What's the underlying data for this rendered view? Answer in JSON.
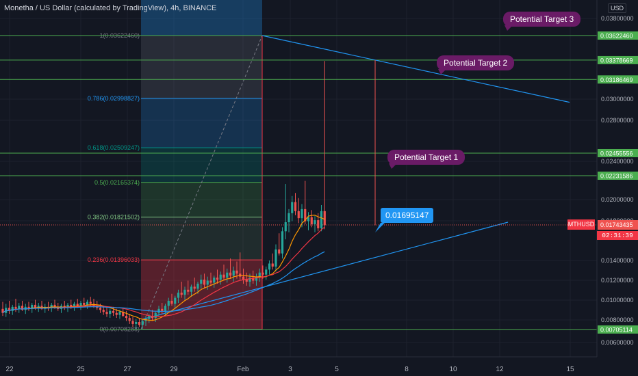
{
  "header": {
    "title": "Monetha / US Dollar (calculated by TradingView), 4h, BINANCE",
    "currency": "USD"
  },
  "annotations": {
    "target1": "Potential Target 1",
    "target2": "Potential Target 2",
    "target3": "Potential Target 3",
    "price_callout": "0.01695147"
  },
  "price_scale": {
    "symbol": "MTHUSD",
    "last_price": "0.01743435",
    "countdown": "02:31:39"
  },
  "colors": {
    "background": "#131722",
    "grid": "#1e222d",
    "up": "#26a69a",
    "down": "#ef5350",
    "horizontal_level": "#4caf50",
    "trendline": "#2196f3",
    "callout": "#6a1b66",
    "fib_1": "#787b86",
    "fib_0786": "#2196f3",
    "fib_0618": "#009688",
    "fib_05": "#4caf50",
    "fib_0382": "#81c784",
    "fib_0236": "#f23645"
  },
  "chart_data": {
    "type": "candlestick",
    "title": "Monetha / US Dollar (calculated by TradingView), 4h, BINANCE",
    "x_tick_labels": [
      "22",
      "25",
      "27",
      "29",
      "Feb",
      "3",
      "5",
      "8",
      "10",
      "12",
      "15"
    ],
    "y_tick_labels": [
      "0.03800000",
      "0.03000000",
      "0.02800000",
      "0.02400000",
      "0.02000000",
      "0.01800000",
      "0.01400000",
      "0.01200000",
      "0.01000000",
      "0.00800000",
      "0.00600000"
    ],
    "ylim": [
      0.0052,
      0.0395
    ],
    "horizontal_levels": [
      0.0362246,
      0.03378669,
      0.03186469,
      0.02455556,
      0.02231586,
      0.00705114
    ],
    "fibonacci": [
      {
        "ratio": "1",
        "price": 0.0362246,
        "label": "1(0.03622460)"
      },
      {
        "ratio": "0.786",
        "price": 0.02998827,
        "label": "0.786(0.02998827)"
      },
      {
        "ratio": "0.618",
        "price": 0.02509247,
        "label": "0.618(0.02509247)"
      },
      {
        "ratio": "0.5",
        "price": 0.02165374,
        "label": "0.5(0.02165374)"
      },
      {
        "ratio": "0.382",
        "price": 0.01821502,
        "label": "0.382(0.01821502)"
      },
      {
        "ratio": "0.236",
        "price": 0.01396033,
        "label": "0.236(0.01396033)"
      },
      {
        "ratio": "0",
        "price": 0.00708288,
        "label": "0(0.00708288)"
      }
    ],
    "candles": [
      {
        "o": 0.0091,
        "h": 0.0098,
        "l": 0.0084,
        "c": 0.0087
      },
      {
        "o": 0.0087,
        "h": 0.0096,
        "l": 0.0083,
        "c": 0.0092
      },
      {
        "o": 0.0092,
        "h": 0.0099,
        "l": 0.0086,
        "c": 0.0089
      },
      {
        "o": 0.0089,
        "h": 0.0095,
        "l": 0.0085,
        "c": 0.0093
      },
      {
        "o": 0.0093,
        "h": 0.0101,
        "l": 0.0088,
        "c": 0.0091
      },
      {
        "o": 0.0091,
        "h": 0.0097,
        "l": 0.0087,
        "c": 0.0094
      },
      {
        "o": 0.0094,
        "h": 0.0099,
        "l": 0.0089,
        "c": 0.009
      },
      {
        "o": 0.009,
        "h": 0.0096,
        "l": 0.0086,
        "c": 0.0093
      },
      {
        "o": 0.0093,
        "h": 0.0098,
        "l": 0.0089,
        "c": 0.0091
      },
      {
        "o": 0.0091,
        "h": 0.0097,
        "l": 0.0087,
        "c": 0.0095
      },
      {
        "o": 0.0095,
        "h": 0.01,
        "l": 0.009,
        "c": 0.0092
      },
      {
        "o": 0.0092,
        "h": 0.0097,
        "l": 0.0088,
        "c": 0.0094
      },
      {
        "o": 0.0094,
        "h": 0.0099,
        "l": 0.009,
        "c": 0.0091
      },
      {
        "o": 0.0091,
        "h": 0.0096,
        "l": 0.0087,
        "c": 0.0093
      },
      {
        "o": 0.0093,
        "h": 0.0098,
        "l": 0.0089,
        "c": 0.0092
      },
      {
        "o": 0.0092,
        "h": 0.0097,
        "l": 0.0088,
        "c": 0.0095
      },
      {
        "o": 0.0095,
        "h": 0.01,
        "l": 0.0091,
        "c": 0.0093
      },
      {
        "o": 0.0093,
        "h": 0.0097,
        "l": 0.0089,
        "c": 0.0091
      },
      {
        "o": 0.0091,
        "h": 0.0096,
        "l": 0.0087,
        "c": 0.0094
      },
      {
        "o": 0.0094,
        "h": 0.0099,
        "l": 0.009,
        "c": 0.0092
      },
      {
        "o": 0.0092,
        "h": 0.0097,
        "l": 0.0088,
        "c": 0.0095
      },
      {
        "o": 0.0095,
        "h": 0.01,
        "l": 0.0091,
        "c": 0.0093
      },
      {
        "o": 0.0093,
        "h": 0.0098,
        "l": 0.0089,
        "c": 0.0096
      },
      {
        "o": 0.0096,
        "h": 0.0101,
        "l": 0.0092,
        "c": 0.0094
      },
      {
        "o": 0.0094,
        "h": 0.0099,
        "l": 0.009,
        "c": 0.0097
      },
      {
        "o": 0.0097,
        "h": 0.0102,
        "l": 0.0093,
        "c": 0.0095
      },
      {
        "o": 0.0095,
        "h": 0.01,
        "l": 0.0091,
        "c": 0.0098
      },
      {
        "o": 0.0098,
        "h": 0.0103,
        "l": 0.0094,
        "c": 0.0096
      },
      {
        "o": 0.0096,
        "h": 0.0101,
        "l": 0.0092,
        "c": 0.0094
      },
      {
        "o": 0.0094,
        "h": 0.0099,
        "l": 0.009,
        "c": 0.0092
      },
      {
        "o": 0.0092,
        "h": 0.0096,
        "l": 0.0087,
        "c": 0.009
      },
      {
        "o": 0.009,
        "h": 0.0094,
        "l": 0.0085,
        "c": 0.0088
      },
      {
        "o": 0.0088,
        "h": 0.0093,
        "l": 0.0083,
        "c": 0.0086
      },
      {
        "o": 0.0086,
        "h": 0.0091,
        "l": 0.0082,
        "c": 0.0089
      },
      {
        "o": 0.0089,
        "h": 0.0093,
        "l": 0.0084,
        "c": 0.0087
      },
      {
        "o": 0.0087,
        "h": 0.0091,
        "l": 0.0082,
        "c": 0.0085
      },
      {
        "o": 0.0085,
        "h": 0.009,
        "l": 0.0081,
        "c": 0.0088
      },
      {
        "o": 0.0088,
        "h": 0.0092,
        "l": 0.0083,
        "c": 0.0084
      },
      {
        "o": 0.0084,
        "h": 0.0089,
        "l": 0.0079,
        "c": 0.0082
      },
      {
        "o": 0.0082,
        "h": 0.0086,
        "l": 0.0076,
        "c": 0.0079
      },
      {
        "o": 0.0079,
        "h": 0.0083,
        "l": 0.0073,
        "c": 0.0076
      },
      {
        "o": 0.0076,
        "h": 0.0081,
        "l": 0.0071,
        "c": 0.0078
      },
      {
        "o": 0.0078,
        "h": 0.0082,
        "l": 0.0073,
        "c": 0.0075
      },
      {
        "o": 0.0075,
        "h": 0.0081,
        "l": 0.0071,
        "c": 0.0079
      },
      {
        "o": 0.0079,
        "h": 0.0084,
        "l": 0.0074,
        "c": 0.0081
      },
      {
        "o": 0.0081,
        "h": 0.0086,
        "l": 0.0077,
        "c": 0.0084
      },
      {
        "o": 0.0084,
        "h": 0.009,
        "l": 0.0079,
        "c": 0.0082
      },
      {
        "o": 0.0082,
        "h": 0.0088,
        "l": 0.0078,
        "c": 0.0087
      },
      {
        "o": 0.0087,
        "h": 0.0094,
        "l": 0.0083,
        "c": 0.0091
      },
      {
        "o": 0.0091,
        "h": 0.0097,
        "l": 0.0086,
        "c": 0.0089
      },
      {
        "o": 0.0089,
        "h": 0.0096,
        "l": 0.0085,
        "c": 0.0094
      },
      {
        "o": 0.0094,
        "h": 0.0102,
        "l": 0.009,
        "c": 0.0099
      },
      {
        "o": 0.0099,
        "h": 0.0106,
        "l": 0.0094,
        "c": 0.0096
      },
      {
        "o": 0.0096,
        "h": 0.0104,
        "l": 0.0092,
        "c": 0.0102
      },
      {
        "o": 0.0102,
        "h": 0.011,
        "l": 0.0097,
        "c": 0.0107
      },
      {
        "o": 0.0107,
        "h": 0.0118,
        "l": 0.0102,
        "c": 0.0105
      },
      {
        "o": 0.0105,
        "h": 0.0113,
        "l": 0.01,
        "c": 0.011
      },
      {
        "o": 0.011,
        "h": 0.0119,
        "l": 0.0105,
        "c": 0.0108
      },
      {
        "o": 0.0108,
        "h": 0.0115,
        "l": 0.0103,
        "c": 0.0113
      },
      {
        "o": 0.0113,
        "h": 0.0122,
        "l": 0.0108,
        "c": 0.0111
      },
      {
        "o": 0.0111,
        "h": 0.0118,
        "l": 0.0106,
        "c": 0.0116
      },
      {
        "o": 0.0116,
        "h": 0.0125,
        "l": 0.0111,
        "c": 0.012
      },
      {
        "o": 0.012,
        "h": 0.0126,
        "l": 0.0112,
        "c": 0.0115
      },
      {
        "o": 0.0115,
        "h": 0.0123,
        "l": 0.011,
        "c": 0.0119
      },
      {
        "o": 0.0119,
        "h": 0.0127,
        "l": 0.0114,
        "c": 0.0117
      },
      {
        "o": 0.0117,
        "h": 0.0124,
        "l": 0.0112,
        "c": 0.0122
      },
      {
        "o": 0.0122,
        "h": 0.013,
        "l": 0.0116,
        "c": 0.012
      },
      {
        "o": 0.012,
        "h": 0.0128,
        "l": 0.0115,
        "c": 0.0125
      },
      {
        "o": 0.0125,
        "h": 0.0135,
        "l": 0.0119,
        "c": 0.0122
      },
      {
        "o": 0.0122,
        "h": 0.0131,
        "l": 0.0117,
        "c": 0.0127
      },
      {
        "o": 0.0127,
        "h": 0.0141,
        "l": 0.0121,
        "c": 0.0124
      },
      {
        "o": 0.0124,
        "h": 0.0133,
        "l": 0.0118,
        "c": 0.0129
      },
      {
        "o": 0.0129,
        "h": 0.0138,
        "l": 0.0121,
        "c": 0.0126
      },
      {
        "o": 0.0126,
        "h": 0.0147,
        "l": 0.012,
        "c": 0.0123
      },
      {
        "o": 0.0123,
        "h": 0.0131,
        "l": 0.0116,
        "c": 0.012
      },
      {
        "o": 0.012,
        "h": 0.0127,
        "l": 0.0114,
        "c": 0.0118
      },
      {
        "o": 0.0118,
        "h": 0.0126,
        "l": 0.0113,
        "c": 0.0122
      },
      {
        "o": 0.0122,
        "h": 0.0129,
        "l": 0.0116,
        "c": 0.0119
      },
      {
        "o": 0.0119,
        "h": 0.0126,
        "l": 0.0114,
        "c": 0.0123
      },
      {
        "o": 0.0123,
        "h": 0.0131,
        "l": 0.0118,
        "c": 0.0127
      },
      {
        "o": 0.0127,
        "h": 0.0134,
        "l": 0.0121,
        "c": 0.0125
      },
      {
        "o": 0.0125,
        "h": 0.0133,
        "l": 0.012,
        "c": 0.013
      },
      {
        "o": 0.013,
        "h": 0.0139,
        "l": 0.0125,
        "c": 0.0136
      },
      {
        "o": 0.0136,
        "h": 0.0146,
        "l": 0.013,
        "c": 0.0133
      },
      {
        "o": 0.0133,
        "h": 0.0155,
        "l": 0.0128,
        "c": 0.015
      },
      {
        "o": 0.015,
        "h": 0.0166,
        "l": 0.0144,
        "c": 0.0146
      },
      {
        "o": 0.0146,
        "h": 0.0172,
        "l": 0.0141,
        "c": 0.0168
      },
      {
        "o": 0.0168,
        "h": 0.0215,
        "l": 0.016,
        "c": 0.0177
      },
      {
        "o": 0.0177,
        "h": 0.019,
        "l": 0.0167,
        "c": 0.0186
      },
      {
        "o": 0.0186,
        "h": 0.0203,
        "l": 0.0178,
        "c": 0.0197
      },
      {
        "o": 0.0197,
        "h": 0.0206,
        "l": 0.0184,
        "c": 0.0188
      },
      {
        "o": 0.0188,
        "h": 0.0201,
        "l": 0.0176,
        "c": 0.0181
      },
      {
        "o": 0.0181,
        "h": 0.0195,
        "l": 0.0172,
        "c": 0.019
      },
      {
        "o": 0.019,
        "h": 0.0218,
        "l": 0.0175,
        "c": 0.0178
      },
      {
        "o": 0.0178,
        "h": 0.0187,
        "l": 0.0169,
        "c": 0.0182
      },
      {
        "o": 0.0182,
        "h": 0.0189,
        "l": 0.0172,
        "c": 0.0175
      },
      {
        "o": 0.0175,
        "h": 0.0183,
        "l": 0.0167,
        "c": 0.0179
      },
      {
        "o": 0.0179,
        "h": 0.0186,
        "l": 0.0168,
        "c": 0.0171
      },
      {
        "o": 0.0171,
        "h": 0.0194,
        "l": 0.0168,
        "c": 0.0188
      },
      {
        "o": 0.0188,
        "h": 0.0337,
        "l": 0.017,
        "c": 0.0174
      }
    ],
    "trendlines": [
      {
        "from": {
          "candle": 0,
          "price": 0.0086
        },
        "to": {
          "candle": 98,
          "price": 0.0179
        },
        "style": "solid"
      },
      {
        "from": {
          "candle": 37,
          "price": 0.0362246
        },
        "to": {
          "candle": 118,
          "price": 0.0296
        },
        "style": "solid"
      }
    ],
    "moving_averages": [
      "orange",
      "red",
      "blue"
    ]
  }
}
